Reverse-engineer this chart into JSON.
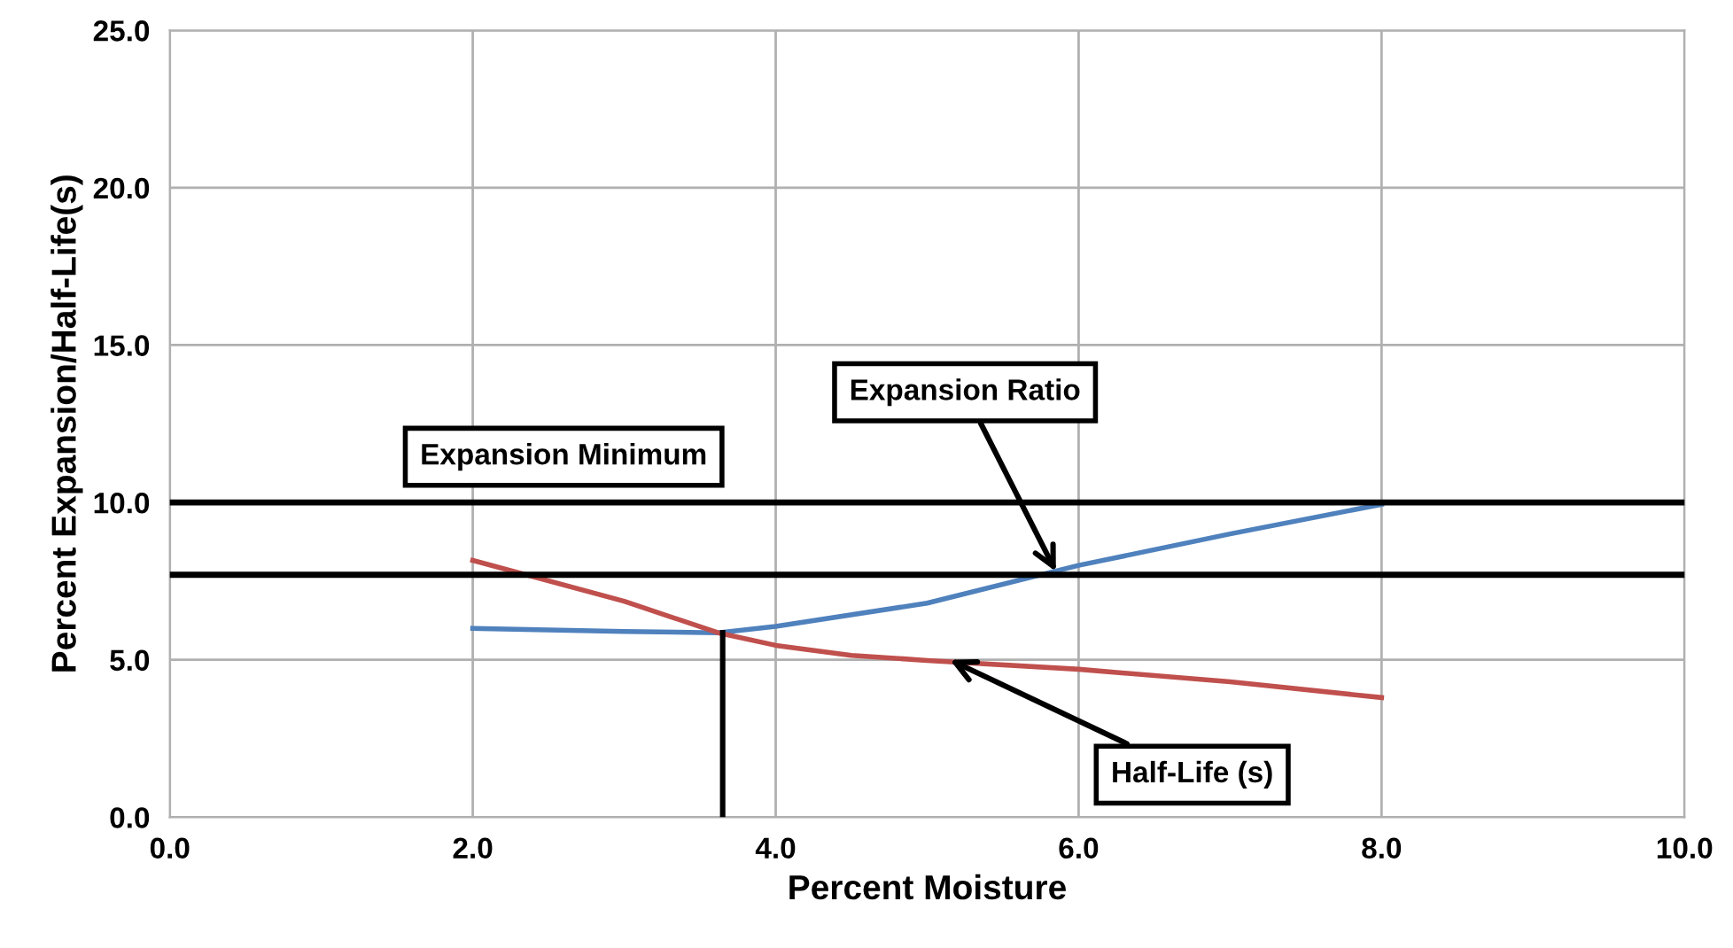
{
  "chart_data": {
    "type": "line",
    "xlabel": "Percent Moisture",
    "ylabel": "Percent Expansion/Half-Life(s)",
    "xlim": [
      0,
      10
    ],
    "ylim": [
      0,
      25
    ],
    "xticks": [
      {
        "value": 0,
        "label": "0.0"
      },
      {
        "value": 2,
        "label": "2.0"
      },
      {
        "value": 4,
        "label": "4.0"
      },
      {
        "value": 6,
        "label": "6.0"
      },
      {
        "value": 8,
        "label": "8.0"
      },
      {
        "value": 10,
        "label": "10.0"
      }
    ],
    "yticks": [
      {
        "value": 0,
        "label": "0.0"
      },
      {
        "value": 5,
        "label": "5.0"
      },
      {
        "value": 10,
        "label": "10.0"
      },
      {
        "value": 15,
        "label": "15.0"
      },
      {
        "value": 20,
        "label": "20.0"
      },
      {
        "value": 25,
        "label": "25.0"
      }
    ],
    "grid": true,
    "legend": false,
    "marker": "none",
    "line_style": "solid",
    "series": [
      {
        "color": "#4f81bd",
        "x": [
          2,
          3,
          3.62,
          4,
          5,
          6,
          7,
          8
        ],
        "values": [
          6.0,
          5.9,
          5.86,
          6.06,
          6.8,
          8.0,
          9.0,
          9.94
        ]
      },
      {
        "color": "#c0504d",
        "x": [
          2,
          3,
          3.62,
          4,
          4.5,
          5,
          6,
          7,
          8
        ],
        "values": [
          8.16,
          6.86,
          5.86,
          5.46,
          5.14,
          4.98,
          4.7,
          4.3,
          3.8
        ]
      },
      {
        "color": "#000000",
        "x": [
          3.65,
          3.65
        ],
        "values": [
          0,
          5.86
        ]
      }
    ],
    "ref_lines": [
      {
        "axis": "y",
        "value": 10.0,
        "label": "Expansion Minimum",
        "color": "#000000"
      },
      {
        "axis": "y",
        "value": 7.7,
        "color": "#000000"
      }
    ],
    "annotations": [
      {
        "text": "Expansion Ratio",
        "x": 5.85,
        "y": 7.8
      },
      {
        "text": "Half-Life (s)",
        "x": 5.15,
        "y": 5.0
      }
    ]
  }
}
